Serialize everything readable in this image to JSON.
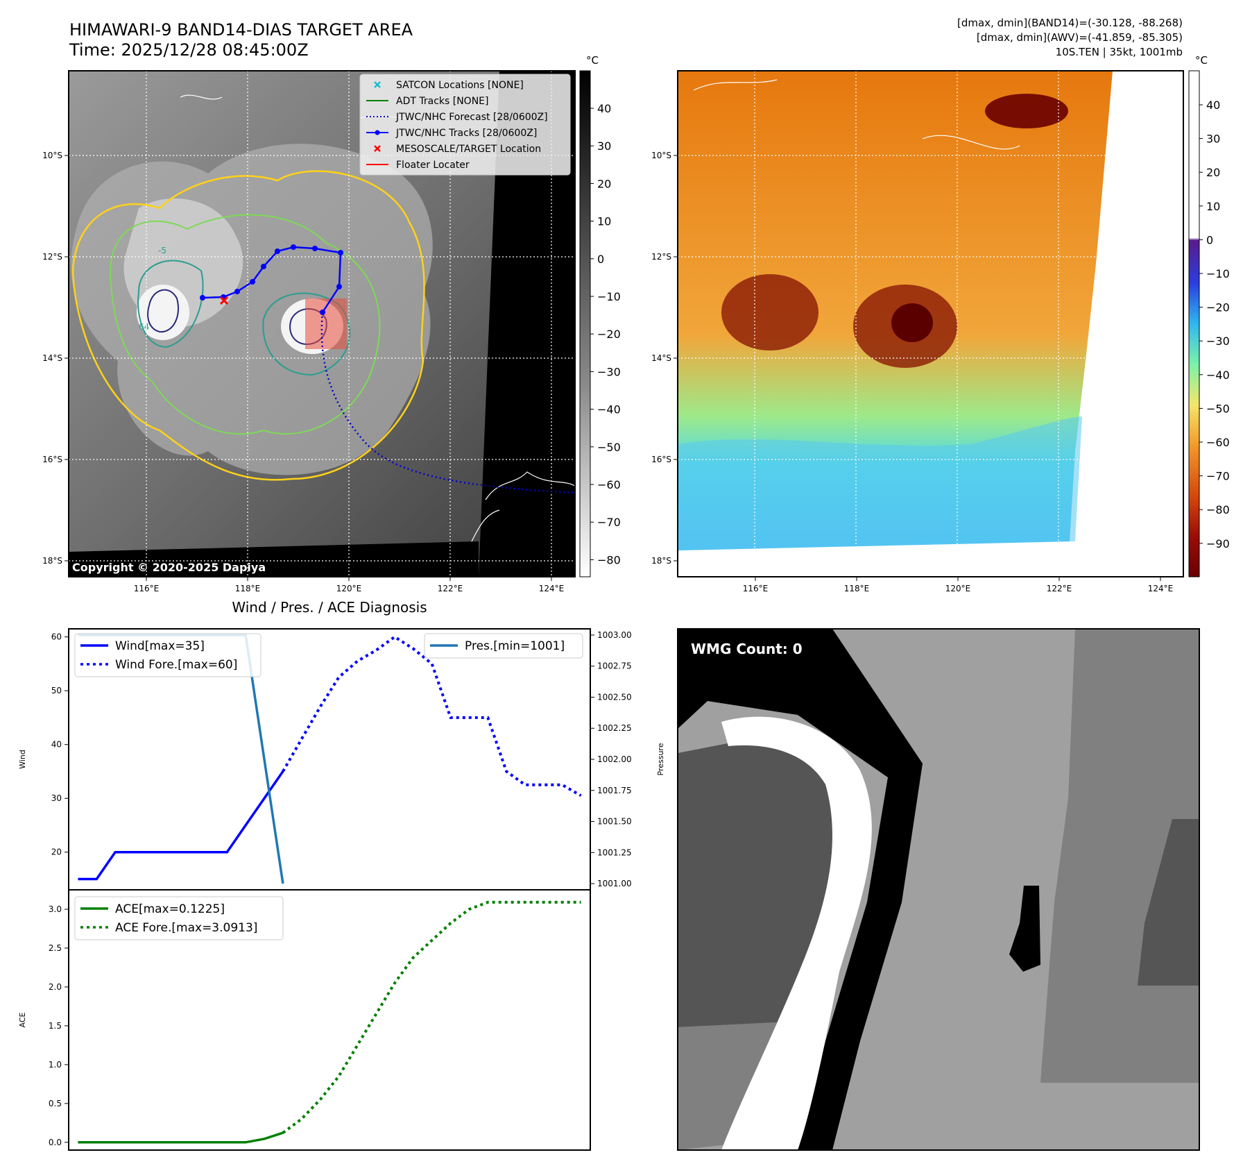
{
  "header": {
    "title": "HIMAWARI-9 BAND14-DIAS TARGET AREA",
    "time": "Time: 2025/12/28 08:45:00Z",
    "stat1": "[dmax, dmin](BAND14)=(-30.128, -88.268)",
    "stat2": "[dmax, dmin](AWV)=(-41.859, -85.305)",
    "storm": "10S.TEN | 35kt, 1001mb"
  },
  "copyright": "Copyright © 2020-2025 Dapiya",
  "maps": {
    "lon_ticks": [
      "116°E",
      "118°E",
      "120°E",
      "122°E",
      "124°E"
    ],
    "lat_ticks": [
      "10°S",
      "12°S",
      "14°S",
      "16°S",
      "18°S"
    ],
    "contour_label": "64",
    "contour_label2": "-5",
    "legend": [
      {
        "label": "SATCON Locations [NONE]",
        "color": "#17becf",
        "style": "x"
      },
      {
        "label": "ADT Tracks [NONE]",
        "color": "#008000",
        "style": "line"
      },
      {
        "label": "JTWC/NHC Forecast [28/0600Z]",
        "color": "#0000cc",
        "style": "dotted"
      },
      {
        "label": "JTWC/NHC Tracks [28/0600Z]",
        "color": "#0000ff",
        "style": "line-dot"
      },
      {
        "label": "MESOSCALE/TARGET Location",
        "color": "#ff0000",
        "style": "x"
      },
      {
        "label": "Floater Locater",
        "color": "#ff0000",
        "style": "line"
      }
    ]
  },
  "colorbars": {
    "unit": "°C",
    "gray_ticks": [
      "40",
      "30",
      "20",
      "10",
      "0",
      "−10",
      "−20",
      "−30",
      "−40",
      "−50",
      "−60",
      "−70",
      "−80"
    ],
    "color_ticks": [
      "40",
      "30",
      "20",
      "10",
      "0",
      "−10",
      "−20",
      "−30",
      "−40",
      "−50",
      "−60",
      "−70",
      "−80",
      "−90"
    ]
  },
  "wmg": {
    "label": "WMG Count: 0"
  },
  "chart_data": [
    {
      "type": "line",
      "title": "Wind / Pres. / ACE Diagnosis",
      "ylabel": "Wind",
      "y2label": "Pressure",
      "ylim": [
        13,
        61.5
      ],
      "y2lim": [
        1000.95,
        1003.05
      ],
      "yticks": [
        20,
        30,
        40,
        50,
        60
      ],
      "y2ticks": [
        "1001.00",
        "1001.25",
        "1001.50",
        "1001.75",
        "1002.00",
        "1002.25",
        "1002.50",
        "1002.75",
        "1003.00"
      ],
      "series": [
        {
          "name": "Wind[max=35]",
          "color": "#0000ff",
          "style": "solid",
          "x": [
            0,
            1,
            2,
            3,
            4,
            5,
            6,
            7,
            8,
            9,
            10,
            11
          ],
          "y": [
            15,
            15,
            20,
            20,
            20,
            20,
            20,
            20,
            20,
            25,
            30,
            35
          ]
        },
        {
          "name": "Wind Fore.[max=60]",
          "color": "#0000ff",
          "style": "dotted",
          "x": [
            11,
            12,
            13,
            14,
            15,
            16,
            17,
            18,
            19,
            20,
            21,
            22,
            23,
            24,
            25,
            26,
            27
          ],
          "y": [
            35,
            41,
            47,
            52.5,
            55.5,
            57.5,
            60,
            57.8,
            55,
            45,
            45,
            45,
            35,
            32.5,
            32.5,
            32.5,
            30.5
          ]
        },
        {
          "name": "Pres.[min=1001]",
          "color": "#1f77b4",
          "style": "solid",
          "axis": "right",
          "x": [
            0,
            1,
            2,
            3,
            4,
            5,
            6,
            7,
            8,
            9,
            10,
            11
          ],
          "y": [
            1003,
            1003,
            1003,
            1003,
            1003,
            1003,
            1003,
            1003,
            1003,
            1003,
            1002,
            1001
          ]
        }
      ]
    },
    {
      "type": "line",
      "ylabel": "ACE",
      "ylim": [
        -0.1,
        3.25
      ],
      "yticks": [
        "0.0",
        "0.5",
        "1.0",
        "1.5",
        "2.0",
        "2.5",
        "3.0"
      ],
      "series": [
        {
          "name": "ACE[max=0.1225]",
          "color": "#008000",
          "style": "solid",
          "x": [
            0,
            1,
            2,
            3,
            4,
            5,
            6,
            7,
            8,
            9,
            10,
            11
          ],
          "y": [
            0,
            0,
            0,
            0,
            0,
            0,
            0,
            0,
            0,
            0,
            0.045,
            0.1225
          ]
        },
        {
          "name": "ACE Fore.[max=3.0913]",
          "color": "#008000",
          "style": "dotted",
          "x": [
            11,
            12,
            13,
            14,
            15,
            16,
            17,
            18,
            19,
            20,
            21,
            22,
            23,
            24,
            25,
            26,
            27
          ],
          "y": [
            0.1225,
            0.3,
            0.55,
            0.85,
            1.25,
            1.65,
            2.05,
            2.38,
            2.6,
            2.82,
            3.0,
            3.09,
            3.09,
            3.09,
            3.09,
            3.09,
            3.09
          ]
        }
      ]
    }
  ]
}
